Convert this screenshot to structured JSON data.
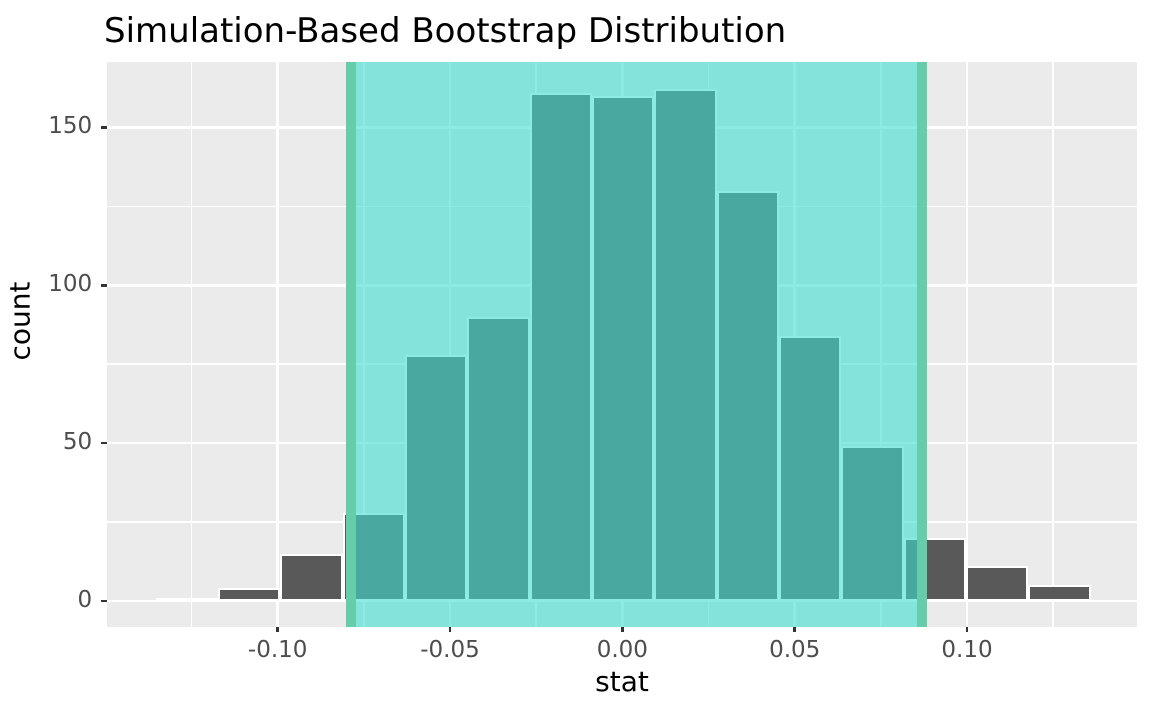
{
  "title": "Simulation-Based Bootstrap Distribution",
  "chart_data": {
    "type": "bar",
    "subtype": "histogram",
    "title": "Simulation-Based Bootstrap Distribution",
    "xlabel": "stat",
    "ylabel": "count",
    "xlim": [
      -0.1496,
      0.1494
    ],
    "ylim": [
      -8.1,
      170.8
    ],
    "grid": true,
    "bin_start": -0.13537,
    "bin_width": 0.018086,
    "bin_centers": [
      -0.1263,
      -0.1082,
      -0.0901,
      -0.0721,
      -0.054,
      -0.0359,
      -0.0178,
      0.0003,
      0.0184,
      0.0365,
      0.0545,
      0.0726,
      0.0907,
      0.1088,
      0.1269
    ],
    "counts": [
      1,
      4,
      15,
      28,
      78,
      90,
      161,
      160,
      162,
      130,
      84,
      49,
      20,
      11,
      5
    ],
    "confidence_interval": {
      "lower": -0.0787,
      "upper": 0.0869
    },
    "x_major_ticks": [
      {
        "v": -0.1,
        "label": "-0.10"
      },
      {
        "v": -0.05,
        "label": "-0.05"
      },
      {
        "v": 0.0,
        "label": "0.00"
      },
      {
        "v": 0.05,
        "label": "0.05"
      },
      {
        "v": 0.1,
        "label": "0.10"
      }
    ],
    "x_minor_ticks": [
      -0.125,
      -0.075,
      -0.025,
      0.025,
      0.075,
      0.125
    ],
    "y_major_ticks": [
      {
        "v": 0,
        "label": "0"
      },
      {
        "v": 50,
        "label": "50"
      },
      {
        "v": 100,
        "label": "100"
      },
      {
        "v": 150,
        "label": "150"
      }
    ],
    "y_minor_ticks": [
      25,
      75,
      125
    ],
    "colors": {
      "panel_background": "#EBEBEB",
      "gridline": "#FFFFFF",
      "bar_fill": "#595959",
      "bar_outline": "#FFFFFF",
      "shade_fill_rgba": "rgba(64,224,208,0.6)",
      "ci_line": "#66CDAA",
      "tick_label": "#4D4D4D",
      "tick_mark": "#333333",
      "text": "#000000"
    }
  }
}
